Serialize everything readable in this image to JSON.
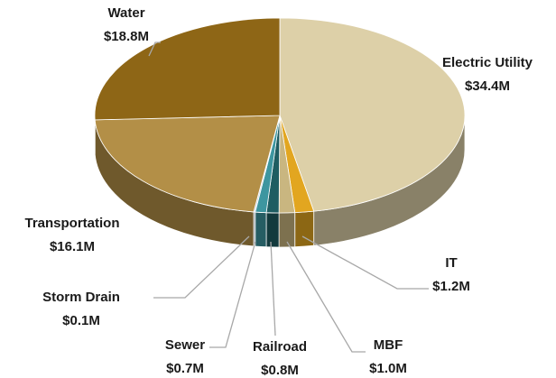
{
  "chart_data": {
    "type": "pie",
    "categories": [
      "Electric Utility",
      "IT",
      "MBF",
      "Railroad",
      "Sewer",
      "Storm Drain",
      "Transportation",
      "Water"
    ],
    "values": [
      34.4,
      1.2,
      1.0,
      0.8,
      0.7,
      0.1,
      16.1,
      18.8
    ],
    "value_labels": [
      "$34.4M",
      "$1.2M",
      "$1.0M",
      "$0.8M",
      "$0.7M",
      "$0.1M",
      "$16.1M",
      "$18.8M"
    ],
    "colors": [
      "#ddd0a8",
      "#e2a620",
      "#c9b680",
      "#1e5d62",
      "#3d96a0",
      "#c5d6e6",
      "#b38f47",
      "#8e6616"
    ]
  }
}
